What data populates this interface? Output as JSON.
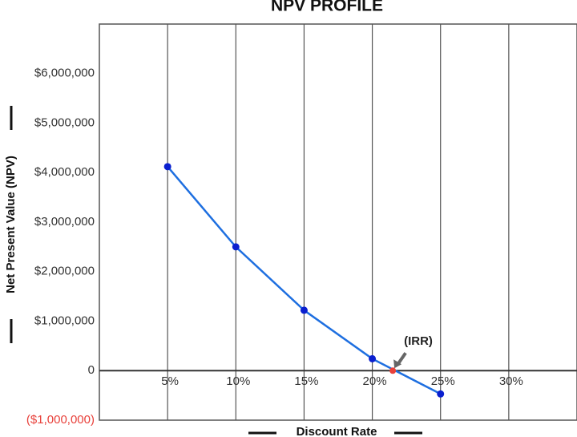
{
  "chart_data": {
    "type": "line",
    "title": "NPV PROFILE",
    "x_label": "Discount Rate",
    "y_label": "Net Present Value (NPV)",
    "x": [
      5,
      10,
      15,
      20,
      25
    ],
    "values": [
      4120000,
      2500000,
      1220000,
      240000,
      -470000
    ],
    "color": "#1e6fe0",
    "marker_color": "#0a1fcf",
    "xlim": [
      0,
      35
    ],
    "xticks": [
      {
        "value": 5,
        "label": "5%"
      },
      {
        "value": 10,
        "label": "10%"
      },
      {
        "value": 15,
        "label": "15%"
      },
      {
        "value": 20,
        "label": "20%"
      },
      {
        "value": 25,
        "label": "25%"
      },
      {
        "value": 30,
        "label": "30%"
      }
    ],
    "ylim": [
      -1000000,
      7000000
    ],
    "yticks": [
      {
        "value": 6000000,
        "label": "$6,000,000"
      },
      {
        "value": 5000000,
        "label": "$5,000,000"
      },
      {
        "value": 4000000,
        "label": "$4,000,000"
      },
      {
        "value": 3000000,
        "label": "$3,000,000"
      },
      {
        "value": 2000000,
        "label": "$2,000,000"
      },
      {
        "value": 1000000,
        "label": "$1,000,000"
      },
      0,
      {
        "value": -1000000,
        "label": "($1,000,000)"
      }
    ],
    "negative_tick_color": "#e8403a",
    "x_grid": true,
    "irr": {
      "x": 21.5,
      "y": 0,
      "label": "(IRR)",
      "color": "#e8403a"
    }
  }
}
